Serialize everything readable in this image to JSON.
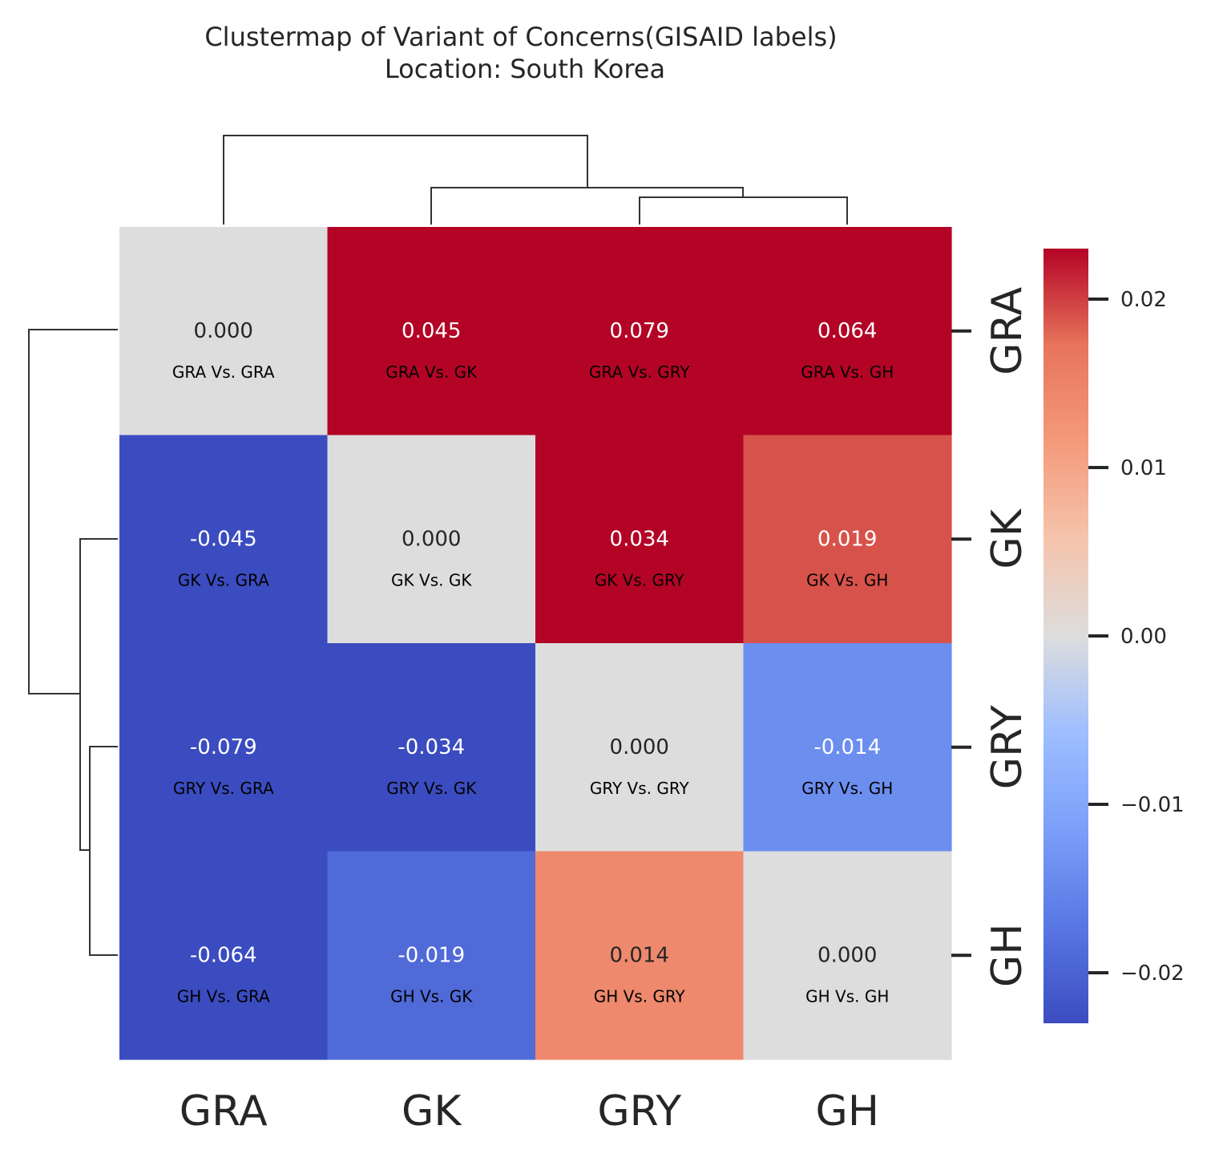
{
  "chart_data": {
    "type": "heatmap",
    "title": "Clustermap of Variant of Concerns(GISAID labels)",
    "subtitle": "Location: South Korea",
    "x_categories": [
      "GRA",
      "GK",
      "GRY",
      "GH"
    ],
    "y_categories": [
      "GRA",
      "GK",
      "GRY",
      "GH"
    ],
    "annotations": [
      [
        "0.000",
        "0.045",
        "0.079",
        "0.064"
      ],
      [
        "-0.045",
        "0.000",
        "0.034",
        "0.019"
      ],
      [
        "-0.079",
        "-0.034",
        "0.000",
        "-0.014"
      ],
      [
        "-0.064",
        "-0.019",
        "0.014",
        "0.000"
      ]
    ],
    "values": [
      [
        0.0,
        0.045,
        0.079,
        0.064
      ],
      [
        -0.045,
        0.0,
        0.034,
        0.019
      ],
      [
        -0.079,
        -0.034,
        0.0,
        -0.014
      ],
      [
        -0.064,
        -0.019,
        0.014,
        0.0
      ]
    ],
    "cell_labels": [
      [
        "GRA Vs. GRA",
        "GRA Vs. GK",
        "GRA Vs. GRY",
        "GRA Vs. GH"
      ],
      [
        "GK Vs. GRA",
        "GK Vs. GK",
        "GK Vs. GRY",
        "GK Vs. GH"
      ],
      [
        "GRY Vs. GRA",
        "GRY Vs. GK",
        "GRY Vs. GRY",
        "GRY Vs. GH"
      ],
      [
        "GH Vs. GRA",
        "GH Vs. GK",
        "GH Vs. GRY",
        "GH Vs. GH"
      ]
    ],
    "colorbar": {
      "colormap": "coolwarm",
      "range": [
        -0.023,
        0.023
      ],
      "ticks": [
        0.02,
        0.01,
        0.0,
        -0.01,
        -0.02
      ],
      "tick_labels": [
        "0.02",
        "0.01",
        "0.00",
        "−0.01",
        "−0.02"
      ]
    },
    "dendrogram_order": [
      "GRA",
      "GK",
      "GRY",
      "GH"
    ],
    "grid": false
  }
}
